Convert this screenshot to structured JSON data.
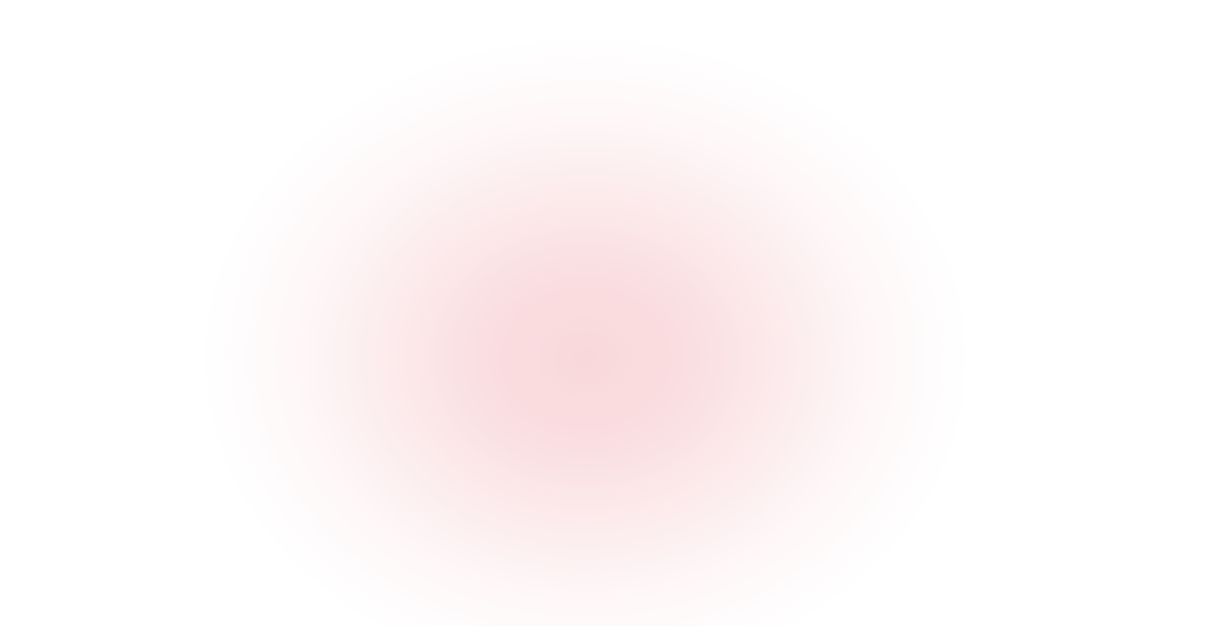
{
  "background": {
    "base_color": "#ffffff",
    "glow_color": "#f9d8db"
  }
}
